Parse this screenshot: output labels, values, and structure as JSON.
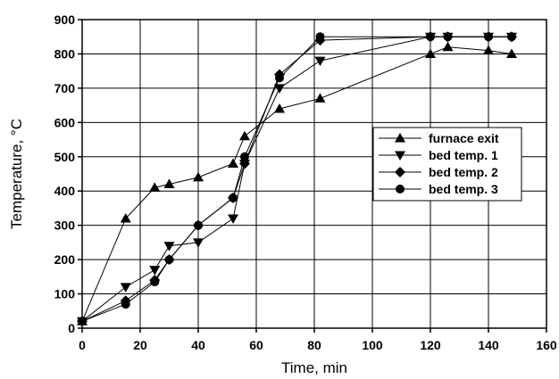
{
  "chart_data": {
    "type": "line",
    "title": "",
    "xlabel": "Time, min",
    "ylabel": "Temperature, °C",
    "xlim": [
      0,
      160
    ],
    "ylim": [
      0,
      900
    ],
    "xticks": [
      0,
      20,
      40,
      60,
      80,
      100,
      120,
      140,
      160
    ],
    "yticks": [
      0,
      100,
      200,
      300,
      400,
      500,
      600,
      700,
      800,
      900
    ],
    "grid": true,
    "legend_position": "center-right",
    "series": [
      {
        "name": "furnace exit",
        "marker": "triangle-up",
        "x": [
          0,
          15,
          25,
          30,
          40,
          52,
          56,
          68,
          82,
          120,
          126,
          140,
          148
        ],
        "y": [
          20,
          320,
          410,
          420,
          440,
          480,
          560,
          640,
          670,
          800,
          820,
          810,
          800
        ]
      },
      {
        "name": "bed temp. 1",
        "marker": "triangle-down",
        "x": [
          0,
          15,
          25,
          30,
          40,
          52,
          56,
          68,
          82,
          120,
          126,
          140,
          148
        ],
        "y": [
          20,
          120,
          170,
          240,
          250,
          320,
          480,
          700,
          780,
          850,
          850,
          850,
          850
        ]
      },
      {
        "name": "bed temp. 2",
        "marker": "diamond",
        "x": [
          0,
          15,
          25,
          30,
          40,
          52,
          56,
          68,
          82,
          120,
          126,
          140,
          148
        ],
        "y": [
          20,
          80,
          140,
          200,
          300,
          380,
          480,
          740,
          840,
          850,
          850,
          850,
          850
        ]
      },
      {
        "name": "bed temp. 3",
        "marker": "circle",
        "x": [
          0,
          15,
          25,
          30,
          40,
          52,
          56,
          68,
          82,
          120,
          126,
          140,
          148
        ],
        "y": [
          20,
          70,
          135,
          200,
          300,
          380,
          500,
          730,
          850,
          850,
          850,
          850,
          850
        ]
      }
    ]
  }
}
